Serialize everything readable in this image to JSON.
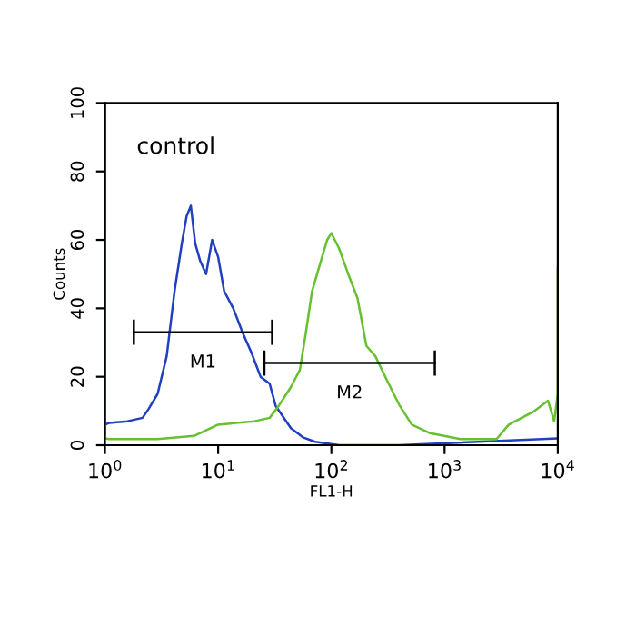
{
  "chart_data": {
    "type": "line",
    "xlabel": "FL1-H",
    "ylabel": "Counts",
    "log": "x",
    "xlim": [
      1,
      10000
    ],
    "ylim": [
      0,
      100
    ],
    "xticks": [
      {
        "value": 1,
        "label": "10$^{0}$"
      },
      {
        "value": 10,
        "label": "10$^{1}$"
      },
      {
        "value": 100,
        "label": "10$^{2}$"
      },
      {
        "value": 1000,
        "label": "10$^{3}$"
      },
      {
        "value": 10000,
        "label": "10$^{4}$"
      }
    ],
    "yticks": [
      0,
      20,
      40,
      60,
      80,
      100
    ],
    "grid": false,
    "legend": false,
    "line_style": "solid",
    "annotations": [
      "control",
      "M1",
      "M2"
    ],
    "series": [
      {
        "color": "#2040c0",
        "x": [
          1,
          1,
          1.09,
          1.58,
          2.15,
          2.43,
          2.92,
          3.51,
          4.12,
          4.78,
          5.27,
          5.74,
          6.27,
          6.92,
          7.82,
          8.85,
          10,
          11.3,
          13.6,
          16.4,
          19.7,
          23.7,
          28.5,
          32.2,
          43.9,
          56.1,
          71.8,
          117,
          398,
          10000
        ],
        "values": [
          100,
          6,
          6.5,
          7,
          8,
          10.6,
          15,
          26,
          45,
          59,
          67,
          70,
          59,
          54,
          50,
          60,
          55,
          45,
          40,
          33,
          27,
          20,
          18,
          11.5,
          5,
          2.3,
          1,
          0,
          0,
          2
        ]
      },
      {
        "color": "#66c030",
        "x": [
          1,
          1,
          1.09,
          2.92,
          6.11,
          10,
          20.9,
          28.5,
          34.3,
          43.9,
          52.7,
          59.6,
          67.5,
          81.1,
          91.8,
          100,
          117,
          141,
          170,
          204,
          245,
          314,
          402,
          514,
          745,
          1380,
          2880,
          3690,
          6040,
          8200,
          9290,
          10000,
          10000
        ],
        "values": [
          60,
          2,
          1.8,
          1.8,
          2.7,
          6,
          7,
          8,
          11.5,
          17,
          22,
          33,
          45,
          54,
          60,
          62,
          57.5,
          50,
          43,
          29,
          26,
          18.6,
          11.5,
          6,
          3.5,
          1.8,
          1.8,
          6,
          9.7,
          13,
          7,
          15,
          52
        ]
      },
      {
        "color": "#000000",
        "x": [
          1.8,
          30
        ],
        "values": [
          33,
          33
        ]
      },
      {
        "color": "#000000",
        "x": [
          25.6,
          820
        ],
        "values": [
          24,
          24
        ]
      }
    ]
  }
}
